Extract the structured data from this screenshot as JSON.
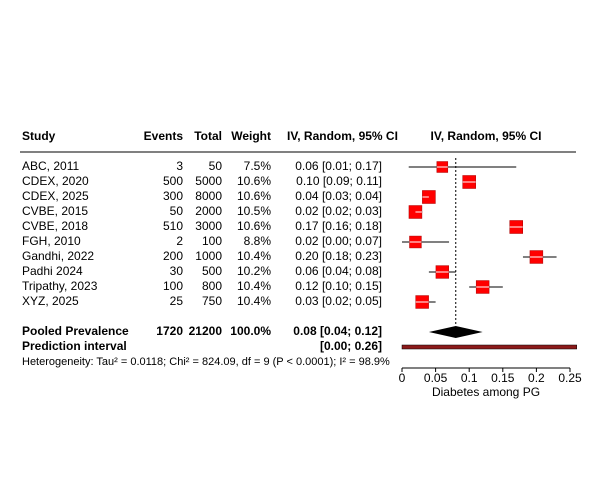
{
  "chart_data": {
    "type": "forest",
    "columns": [
      "Study",
      "Events",
      "Total",
      "Weight",
      "IV, Random, 95% CI"
    ],
    "plot_header": "IV, Random, 95% CI",
    "studies": {
      "names": [
        "ABC, 2011",
        "CDEX, 2020",
        "CDEX, 2025",
        "CVBE, 2015",
        "CVBE, 2018",
        "FGH, 2010",
        "Gandhi, 2022",
        "Padhi 2024",
        "Tripathy, 2023",
        "XYZ, 2025"
      ],
      "events": [
        3,
        500,
        300,
        50,
        510,
        2,
        200,
        30,
        100,
        25
      ],
      "totals": [
        50,
        5000,
        8000,
        2000,
        3000,
        100,
        1000,
        500,
        800,
        750
      ],
      "weights": [
        7.5,
        10.6,
        10.6,
        10.5,
        10.6,
        8.8,
        10.4,
        10.2,
        10.4,
        10.4
      ],
      "weight_labels": [
        "7.5%",
        "10.6%",
        "10.6%",
        "10.5%",
        "10.6%",
        "8.8%",
        "10.4%",
        "10.2%",
        "10.4%",
        "10.4%"
      ],
      "estimates": [
        0.06,
        0.1,
        0.04,
        0.02,
        0.17,
        0.02,
        0.2,
        0.06,
        0.12,
        0.03
      ],
      "lower": [
        0.01,
        0.09,
        0.03,
        0.02,
        0.16,
        0.0,
        0.18,
        0.04,
        0.1,
        0.02
      ],
      "upper": [
        0.17,
        0.11,
        0.04,
        0.03,
        0.18,
        0.07,
        0.23,
        0.08,
        0.15,
        0.05
      ],
      "ci_labels": [
        "0.06 [0.01; 0.17]",
        "0.10 [0.09; 0.11]",
        "0.04 [0.03; 0.04]",
        "0.02 [0.02; 0.03]",
        "0.17 [0.16; 0.18]",
        "0.02 [0.00; 0.07]",
        "0.20 [0.18; 0.23]",
        "0.06 [0.04; 0.08]",
        "0.12 [0.10; 0.15]",
        "0.03 [0.02; 0.05]"
      ]
    },
    "pooled": {
      "label": "Pooled Prevalence",
      "events": 1720,
      "total": 21200,
      "weight": 100,
      "weight_label": "100.0%",
      "estimate": 0.08,
      "lower": 0.04,
      "upper": 0.12,
      "ci_label": "0.08 [0.04; 0.12]"
    },
    "prediction": {
      "label": "Prediction interval",
      "lower": 0,
      "upper": 0.26,
      "ci_label": "[0.00; 0.26]"
    },
    "heterogeneity": "Heterogeneity: Tau² = 0.0118; Chi² = 824.09, df = 9 (P < 0.0001); I² = 98.9%",
    "xlabel": "Diabetes among PG",
    "xlim": [
      0,
      0.25
    ],
    "xticks": [
      0,
      0.05,
      0.1,
      0.15,
      0.2,
      0.25
    ],
    "box_color": "#ff0000",
    "prediction_color": "#8b1a1a"
  }
}
